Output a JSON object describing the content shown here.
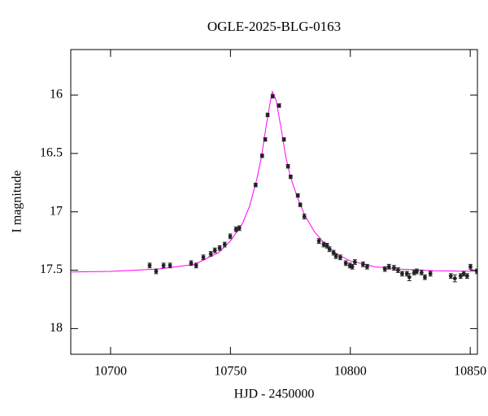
{
  "chart_data": {
    "type": "scatter",
    "title": "OGLE-2025-BLG-0163",
    "x_label": "HJD - 2450000",
    "y_label": "I magnitude",
    "xlim": [
      10683.4,
      10853
    ],
    "ylim": [
      18.22,
      15.61
    ],
    "xticks": [
      10700,
      10750,
      10800,
      10850
    ],
    "yticks": [
      16,
      16.5,
      17,
      17.5,
      18
    ],
    "color": "#222222",
    "x": [
      10716.3,
      10719.0,
      10722.1,
      10724.8,
      10733.6,
      10735.7,
      10738.7,
      10741.8,
      10743.5,
      10745.5,
      10747.6,
      10749.9,
      10752.3,
      10753.7,
      10760.5,
      10763.2,
      10764.5,
      10765.5,
      10767.6,
      10770.3,
      10772.3,
      10774.0,
      10775.1,
      10778.1,
      10779.1,
      10780.8,
      10786.9,
      10788.9,
      10790.3,
      10791.3,
      10793.0,
      10794.0,
      10795.8,
      10798.1,
      10799.8,
      10800.8,
      10801.9,
      10805.3,
      10807.0,
      10814.4,
      10816.1,
      10818.2,
      10819.9,
      10821.6,
      10823.6,
      10824.6,
      10826.6,
      10827.7,
      10829.7,
      10831.1,
      10833.4,
      10841.9,
      10843.6,
      10846.0,
      10847.3,
      10848.7,
      10850.1,
      10852.8
    ],
    "values": [
      17.46,
      17.51,
      17.46,
      17.46,
      17.44,
      17.46,
      17.39,
      17.36,
      17.33,
      17.31,
      17.28,
      17.21,
      17.15,
      17.14,
      16.77,
      16.52,
      16.38,
      16.17,
      16.01,
      16.09,
      16.38,
      16.61,
      16.7,
      16.86,
      16.94,
      17.04,
      17.25,
      17.28,
      17.29,
      17.32,
      17.35,
      17.38,
      17.39,
      17.44,
      17.46,
      17.47,
      17.43,
      17.45,
      17.47,
      17.49,
      17.47,
      17.48,
      17.5,
      17.53,
      17.53,
      17.56,
      17.52,
      17.51,
      17.52,
      17.56,
      17.53,
      17.55,
      17.57,
      17.55,
      17.53,
      17.55,
      17.47,
      17.51
    ],
    "errors": [
      0.02,
      0.02,
      0.02,
      0.02,
      0.02,
      0.02,
      0.02,
      0.02,
      0.02,
      0.02,
      0.02,
      0.02,
      0.02,
      0.02,
      0.015,
      0.015,
      0.015,
      0.015,
      0.015,
      0.015,
      0.015,
      0.015,
      0.015,
      0.015,
      0.015,
      0.02,
      0.02,
      0.02,
      0.02,
      0.02,
      0.02,
      0.02,
      0.02,
      0.02,
      0.02,
      0.02,
      0.02,
      0.02,
      0.02,
      0.02,
      0.02,
      0.02,
      0.02,
      0.02,
      0.02,
      0.03,
      0.02,
      0.02,
      0.02,
      0.02,
      0.02,
      0.02,
      0.03,
      0.02,
      0.02,
      0.02,
      0.02,
      0.02
    ],
    "model": {
      "color": "#ff00ff",
      "x": [
        10683.4,
        10700,
        10720,
        10735,
        10745,
        10750,
        10755,
        10758,
        10761,
        10763,
        10765,
        10766.5,
        10767.5,
        10769,
        10771,
        10773,
        10775,
        10778,
        10781,
        10785,
        10790,
        10795,
        10800,
        10810,
        10820,
        10835,
        10853
      ],
      "values": [
        17.515,
        17.51,
        17.49,
        17.45,
        17.35,
        17.25,
        17.1,
        16.95,
        16.72,
        16.52,
        16.25,
        16.07,
        15.97,
        16.04,
        16.27,
        16.52,
        16.7,
        16.88,
        17.03,
        17.17,
        17.29,
        17.37,
        17.42,
        17.47,
        17.49,
        17.505,
        17.51
      ]
    }
  }
}
